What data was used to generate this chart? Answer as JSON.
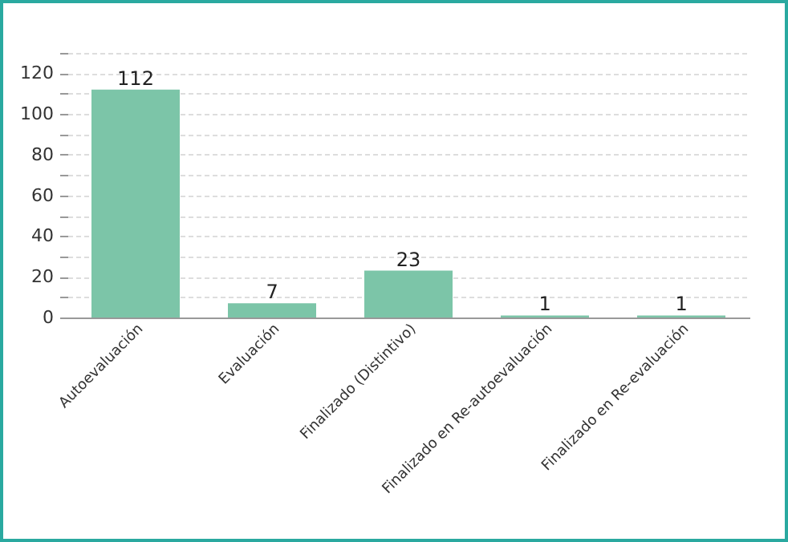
{
  "chart_data": {
    "type": "bar",
    "categories": [
      "Autoevaluación",
      "Evaluación",
      "Finalizado (Distintivo)",
      "Finalizado en Re-autoevaluación",
      "Finalizado en Re-evaluación"
    ],
    "values": [
      112,
      7,
      23,
      1,
      1
    ],
    "color": "#7cc5a8",
    "ylim": [
      0,
      130
    ],
    "yticks": [
      0,
      {
        "value": 10,
        "label": null
      },
      20,
      {
        "value": 30,
        "label": null
      },
      40,
      {
        "value": 50,
        "label": null
      },
      60,
      {
        "value": 70,
        "label": null
      },
      80,
      {
        "value": 90,
        "label": null
      },
      100,
      {
        "value": 110,
        "label": null
      },
      120,
      {
        "value": 130,
        "label": null
      }
    ],
    "grid": "y",
    "data_labels": true
  }
}
